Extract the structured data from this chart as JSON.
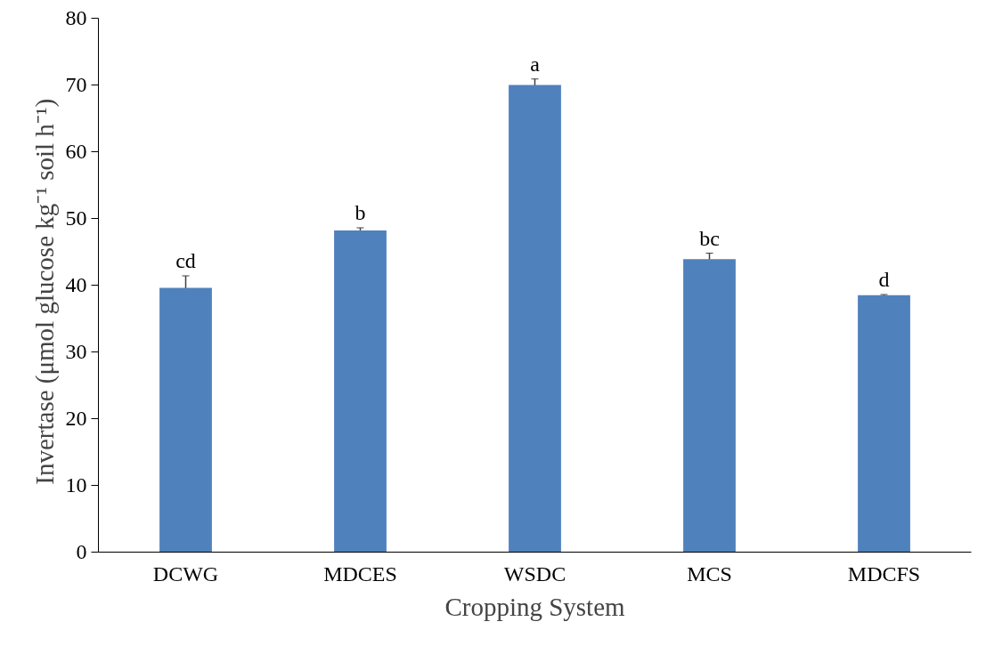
{
  "chart_data": {
    "type": "bar",
    "xlabel": "Cropping System",
    "ylabel": "Invertase  (μmol glucose  kg⁻¹ soil h⁻¹)",
    "categories": [
      "DCWG",
      "MDCES",
      "WSDC",
      "MCS",
      "MDCFS"
    ],
    "values": [
      39.6,
      48.2,
      70.0,
      43.9,
      38.5
    ],
    "errors": [
      1.8,
      0.4,
      0.9,
      0.9,
      0.1
    ],
    "color": "#4f81bd",
    "ylim": [
      0,
      80
    ],
    "yticks": [
      0,
      10,
      20,
      30,
      40,
      50,
      60,
      70,
      80
    ],
    "grid": false,
    "annotations": [
      {
        "text": "cd",
        "x": "DCWG",
        "y": 41.4
      },
      {
        "text": "b",
        "x": "MDCES",
        "y": 48.6
      },
      {
        "text": "a",
        "x": "WSDC",
        "y": 70.9
      },
      {
        "text": "bc",
        "x": "MCS",
        "y": 44.8
      },
      {
        "text": "d",
        "x": "MDCFS",
        "y": 38.6
      }
    ]
  }
}
